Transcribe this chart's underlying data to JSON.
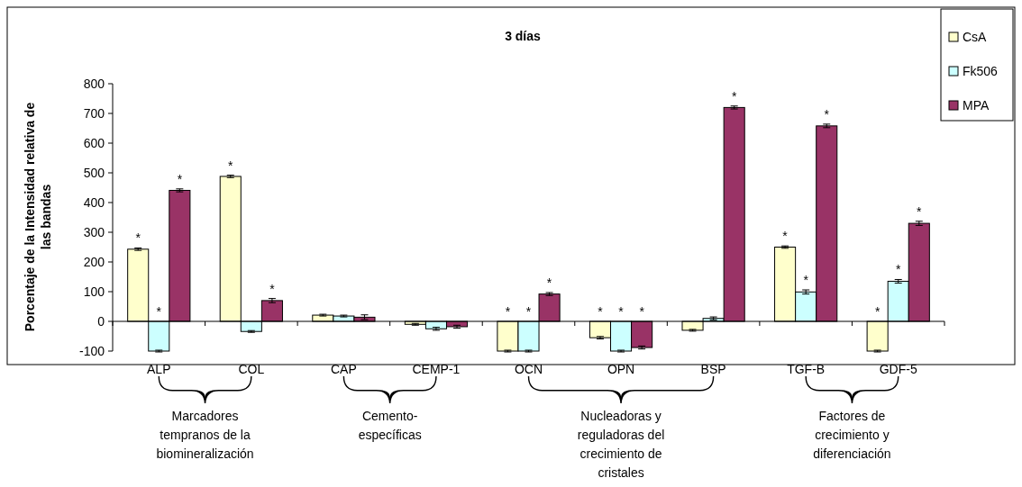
{
  "chart_data": {
    "type": "bar",
    "title": "3 días",
    "ylabel": "Porcentaje de la Intensidad relativa de las bandas",
    "categories": [
      "ALP",
      "COL",
      "CAP",
      "CEMP-1",
      "OCN",
      "OPN",
      "BSP",
      "TGF-B",
      "GDF-5"
    ],
    "series": [
      {
        "name": "CsA",
        "color": "#ffffcc",
        "values": [
          243,
          488,
          21,
          -10,
          -100,
          -55,
          -30,
          250,
          -100
        ],
        "errors": [
          4,
          4,
          3,
          3,
          3,
          4,
          3,
          4,
          3
        ],
        "value_labels": [
          "*",
          "*",
          null,
          null,
          "*",
          "*",
          null,
          "*",
          "*"
        ]
      },
      {
        "name": "Fk506",
        "color": "#ccffff",
        "values": [
          -100,
          -34,
          18,
          -25,
          -100,
          -100,
          10,
          99,
          135
        ],
        "errors": [
          3,
          3,
          3,
          5,
          3,
          3,
          5,
          7,
          6
        ],
        "value_labels": [
          "*",
          null,
          null,
          null,
          "*",
          "*",
          null,
          "*",
          "*"
        ]
      },
      {
        "name": "MPA",
        "color": "#993366",
        "values": [
          441,
          70,
          14,
          -18,
          92,
          -88,
          720,
          658,
          330
        ],
        "errors": [
          5,
          7,
          8,
          5,
          5,
          5,
          5,
          6,
          7
        ],
        "value_labels": [
          "*",
          "*",
          null,
          null,
          "*",
          "*",
          "*",
          "*",
          "*"
        ]
      }
    ],
    "ylim": [
      -100,
      800
    ],
    "yticks": [
      -100,
      0,
      100,
      200,
      300,
      400,
      500,
      600,
      700,
      800
    ],
    "legend": "top right",
    "annotations": [
      "Marcadores tempranos de la biomineralización",
      "Cemento-específicas",
      "Nucleadoras y reguladoras del crecimiento de cristales",
      "Factores de crecimiento y diferenciación"
    ]
  }
}
